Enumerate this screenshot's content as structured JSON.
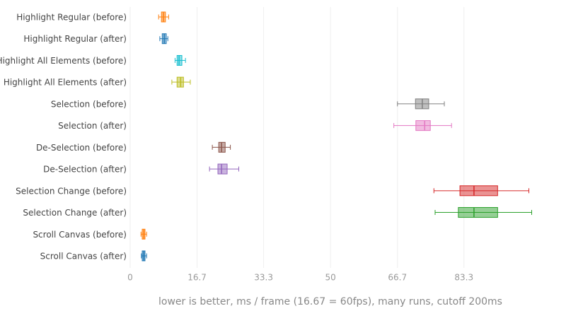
{
  "chart_data": {
    "type": "box",
    "x_label": "lower is better, ms / frame (16.67 = 60fps), many runs, cutoff 200ms",
    "categories": [
      "Highlight Regular (before)",
      "Highlight Regular (after)",
      "Highlight All Elements (before)",
      "Highlight All Elements (after)",
      "Selection (before)",
      "Selection (after)",
      "De-Selection (before)",
      "De-Selection (after)",
      "Selection Change (before)",
      "Selection Change (after)",
      "Scroll Canvas (before)",
      "Scroll Canvas (after)"
    ],
    "boxes": [
      {
        "min": 7.1,
        "q1": 7.8,
        "median": 8.3,
        "q3": 8.8,
        "max": 9.6,
        "color": "#ff7f0e"
      },
      {
        "min": 7.4,
        "q1": 8.0,
        "median": 8.5,
        "q3": 9.0,
        "max": 9.4,
        "color": "#1f77b4"
      },
      {
        "min": 11.2,
        "q1": 11.7,
        "median": 12.2,
        "q3": 12.9,
        "max": 13.8,
        "color": "#17becf"
      },
      {
        "min": 10.4,
        "q1": 11.7,
        "median": 12.6,
        "q3": 13.3,
        "max": 15.0,
        "color": "#bcbd22"
      },
      {
        "min": 66.7,
        "q1": 71.2,
        "median": 72.9,
        "q3": 74.5,
        "max": 78.4,
        "color": "#7f7f7f"
      },
      {
        "min": 65.8,
        "q1": 71.3,
        "median": 73.5,
        "q3": 74.9,
        "max": 80.2,
        "color": "#e377c2"
      },
      {
        "min": 20.5,
        "q1": 22.1,
        "median": 22.8,
        "q3": 23.7,
        "max": 25.0,
        "color": "#8c564b"
      },
      {
        "min": 19.8,
        "q1": 21.9,
        "median": 22.8,
        "q3": 24.2,
        "max": 27.1,
        "color": "#9467bd"
      },
      {
        "min": 75.8,
        "q1": 82.3,
        "median": 85.8,
        "q3": 91.7,
        "max": 99.5,
        "color": "#d62728"
      },
      {
        "min": 76.1,
        "q1": 81.9,
        "median": 85.8,
        "q3": 91.7,
        "max": 100.2,
        "color": "#2ca02c"
      },
      {
        "min": 2.7,
        "q1": 3.0,
        "median": 3.4,
        "q3": 3.7,
        "max": 4.1,
        "color": "#ff7f0e"
      },
      {
        "min": 2.8,
        "q1": 3.0,
        "median": 3.4,
        "q3": 3.7,
        "max": 4.1,
        "color": "#1f77b4"
      }
    ],
    "xlim": [
      0,
      107
    ],
    "xticks": [
      0,
      16.7,
      33.3,
      50,
      66.7,
      83.3
    ],
    "grid": true
  }
}
